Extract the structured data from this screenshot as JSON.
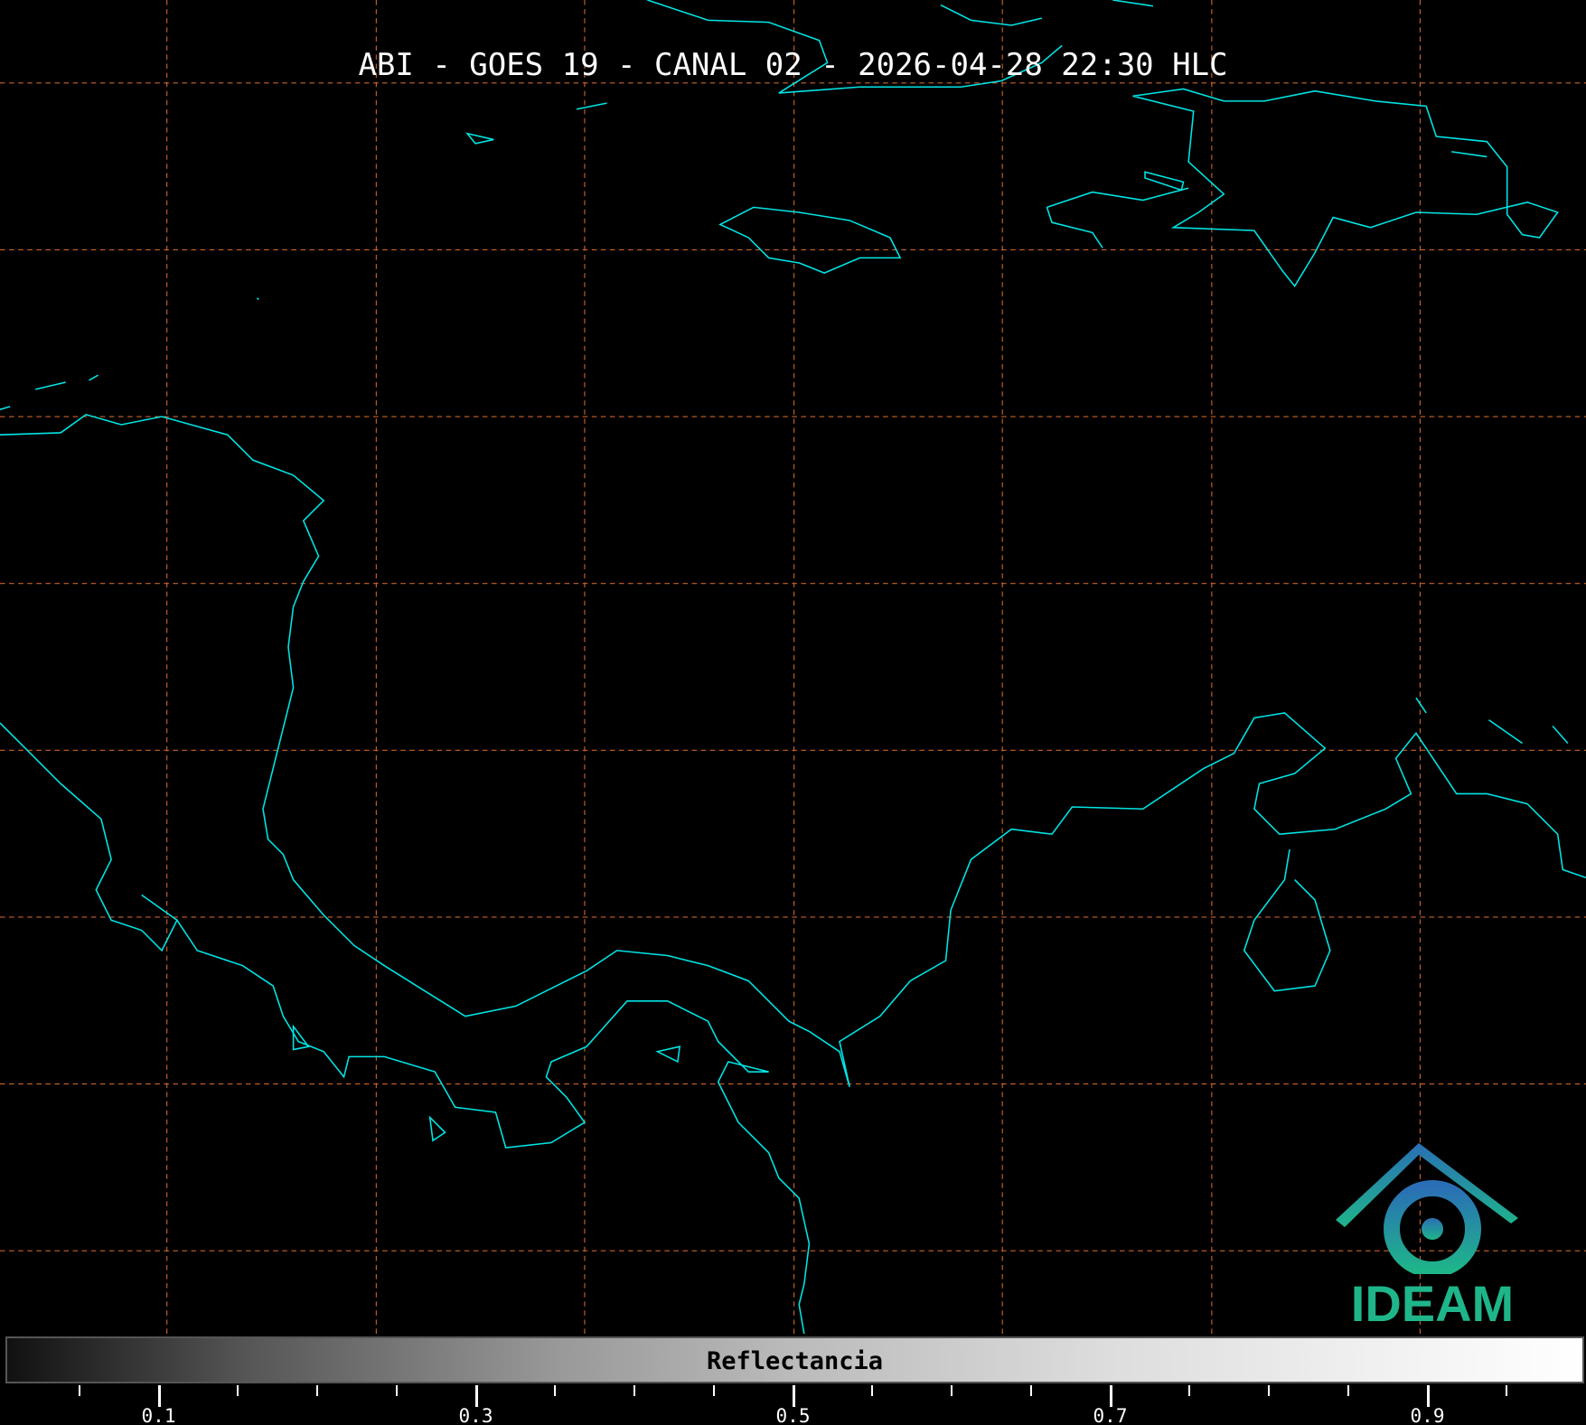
{
  "title": "ABI - GOES 19 - CANAL 02 - 2026-04-28 22:30 HLC",
  "map": {
    "coastline_color": "#00e5e5",
    "grid_color": "#c8642a",
    "background": "#000000"
  },
  "colorbar": {
    "label": "Reflectancia",
    "range": [
      0,
      1
    ],
    "colormap": "grayscale",
    "major_ticks": [
      "0.1",
      "0.3",
      "0.5",
      "0.7",
      "0.9"
    ],
    "minor_tick_step": 0.05
  },
  "logo": {
    "text": "IDEAM",
    "color": "#1fb58a",
    "accent": "#2a6fb5"
  }
}
